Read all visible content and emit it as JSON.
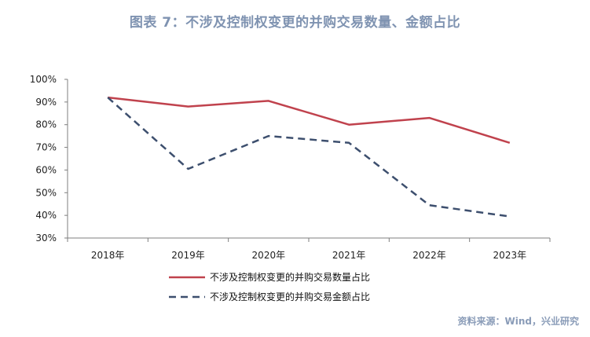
{
  "title": "图表 7：不涉及控制权变更的并购交易数量、金额占比",
  "source": "资料来源：Wind，兴业研究",
  "colors": {
    "series1": "#c0424d",
    "series2": "#3d4f6e",
    "axis": "#7f7f7f",
    "title": "#7f93b1",
    "source": "#8a9cb8"
  },
  "chart_data": {
    "type": "line",
    "title": "图表 7：不涉及控制权变更的并购交易数量、金额占比",
    "xlabel": "",
    "ylabel": "",
    "categories": [
      "2018年",
      "2019年",
      "2020年",
      "2021年",
      "2022年",
      "2023年"
    ],
    "ylim": [
      30,
      100
    ],
    "yticks": [
      "30%",
      "40%",
      "50%",
      "60%",
      "70%",
      "80%",
      "90%",
      "100%"
    ],
    "grid": false,
    "legend_position": "bottom",
    "series": [
      {
        "name": "不涉及控制权变更的并购交易数量占比",
        "values": [
          92,
          88,
          90.5,
          80,
          83,
          72
        ],
        "style": "solid",
        "color": "#c0424d"
      },
      {
        "name": "不涉及控制权变更的并购交易金额占比",
        "values": [
          92,
          60.5,
          75,
          72,
          44.5,
          39.5
        ],
        "style": "dashed",
        "color": "#3d4f6e"
      }
    ]
  }
}
